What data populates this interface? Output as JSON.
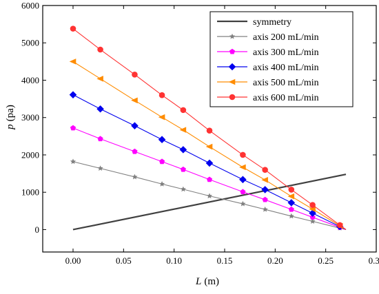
{
  "chart_data": {
    "type": "line",
    "xlabel_var": "L",
    "xlabel_unit": "(m)",
    "ylabel_var": "p",
    "ylabel_unit": "(pa)",
    "xlim": [
      -0.03,
      0.3
    ],
    "ylim": [
      -600,
      6000
    ],
    "xticks": [
      0.0,
      0.05,
      0.1,
      0.15,
      0.2,
      0.25,
      0.3
    ],
    "xtick_labels": [
      "0.00",
      "0.05",
      "0.10",
      "0.15",
      "0.20",
      "0.25",
      "0.30"
    ],
    "yticks": [
      0,
      1000,
      2000,
      3000,
      4000,
      5000,
      6000
    ],
    "ytick_labels": [
      "0",
      "1000",
      "2000",
      "3000",
      "4000",
      "5000",
      "6000"
    ],
    "legend_position": "top-right",
    "grid": false,
    "x": [
      0.0,
      0.027,
      0.061,
      0.088,
      0.109,
      0.135,
      0.168,
      0.19,
      0.216,
      0.237,
      0.264
    ],
    "series": [
      {
        "name": "symmetry",
        "color": "#404040",
        "marker": "none",
        "x": [
          0.0,
          0.27
        ],
        "values": [
          0,
          1480
        ]
      },
      {
        "name": "axis 200 mL/min",
        "color": "#808080",
        "marker": "star",
        "values": [
          1820,
          1640,
          1410,
          1220,
          1080,
          900,
          690,
          540,
          360,
          220,
          40
        ]
      },
      {
        "name": "axis 300 mL/min",
        "color": "#ff00ff",
        "marker": "pentagon",
        "values": [
          2720,
          2430,
          2090,
          1820,
          1610,
          1340,
          1010,
          800,
          540,
          330,
          60
        ]
      },
      {
        "name": "axis 400 mL/min",
        "color": "#0000ee",
        "marker": "diamond",
        "values": [
          3610,
          3230,
          2780,
          2410,
          2140,
          1780,
          1340,
          1070,
          720,
          440,
          80
        ]
      },
      {
        "name": "axis 500 mL/min",
        "color": "#ff8c00",
        "marker": "triangle-left",
        "values": [
          4500,
          4040,
          3460,
          3010,
          2670,
          2220,
          1670,
          1330,
          890,
          550,
          100
        ]
      },
      {
        "name": "axis 600 mL/min",
        "color": "#ff3333",
        "marker": "circle",
        "values": [
          5380,
          4820,
          4150,
          3600,
          3200,
          2650,
          2000,
          1600,
          1070,
          660,
          120
        ]
      }
    ],
    "end_point": {
      "x": 0.27,
      "y": 0
    }
  }
}
